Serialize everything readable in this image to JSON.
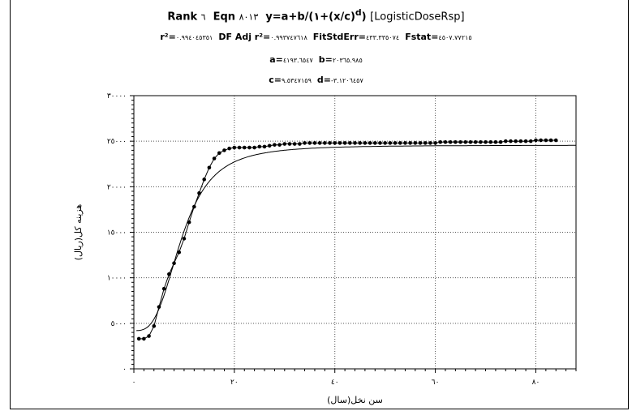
{
  "header": {
    "line1": {
      "rank_label": "Rank",
      "rank_value": "٦",
      "eqn_label": "Eqn",
      "eqn_value": "٨٠١٣",
      "equation": "y=a+b/(١+(x/c)",
      "exponent": "d",
      "close": ")",
      "model": "[LogisticDoseRsp]"
    },
    "line2": {
      "r2_label": "r²=",
      "r2_value": "٠.٩٩٤٠٤٥٣٥١",
      "adj_label": "DF Adj r²=",
      "adj_value": "٠.٩٩٣٧٤٧٦١٨",
      "fse_label": "FitStdErr=",
      "fse_value": "٤٣٣.٣٣٥٠٧٤",
      "f_label": "Fstat=",
      "f_value": "٤٥٠٧.٧٧٢١٥"
    },
    "line3": {
      "a_label": "a=",
      "a_value": "٤١٩٣.٦٥٤٧",
      "b_label": "b=",
      "b_value": "٢٠٣٦٥.٩٨٥"
    },
    "line4": {
      "c_label": "c=",
      "c_value": "٩.٥٣٤٧١٥٩",
      "d_label": "d=",
      "d_value": "-٣.١٢٠٦٤٥٧"
    }
  },
  "chart_data": {
    "type": "scatter",
    "xlabel": "سن نخل(سال)",
    "ylabel": "هزینه کل(ریال)",
    "xlim": [
      0,
      88
    ],
    "ylim": [
      0,
      30000
    ],
    "xticks": [
      0,
      20,
      40,
      60,
      80
    ],
    "xtick_labels": [
      "٠",
      "٢٠",
      "٤٠",
      "٦٠",
      "٨٠"
    ],
    "yticks": [
      0,
      5000,
      10000,
      15000,
      20000,
      25000,
      30000
    ],
    "ytick_labels": [
      "٠",
      "٥٠٠٠",
      "١٠٠٠٠",
      "١٥٠٠٠",
      "٢٠٠٠٠",
      "٢٥٠٠٠",
      "٣٠٠٠٠"
    ],
    "grid": true,
    "fit_params": {
      "a": 4193.6547,
      "b": 20365.985,
      "c": 9.5347159,
      "d": -3.1206457
    },
    "series": [
      {
        "type": "scatter",
        "x": [
          1,
          2,
          3,
          4,
          5,
          6,
          7,
          8,
          9,
          10,
          11,
          12,
          13,
          14,
          15,
          16,
          17,
          18,
          19,
          20,
          21,
          22,
          23,
          24,
          25,
          26,
          27,
          28,
          29,
          30,
          31,
          32,
          33,
          34,
          35,
          36,
          37,
          38,
          39,
          40,
          41,
          42,
          43,
          44,
          45,
          46,
          47,
          48,
          49,
          50,
          51,
          52,
          53,
          54,
          55,
          56,
          57,
          58,
          59,
          60,
          61,
          62,
          63,
          64,
          65,
          66,
          67,
          68,
          69,
          70,
          71,
          72,
          73,
          74,
          75,
          76,
          77,
          78,
          79,
          80,
          81,
          82,
          83,
          84
        ],
        "y": [
          3300,
          3300,
          3600,
          4700,
          6800,
          8800,
          10400,
          11600,
          12800,
          14300,
          16100,
          17800,
          19300,
          20800,
          22100,
          23100,
          23700,
          24000,
          24200,
          24300,
          24300,
          24300,
          24300,
          24300,
          24400,
          24400,
          24500,
          24600,
          24600,
          24700,
          24700,
          24700,
          24700,
          24800,
          24800,
          24800,
          24800,
          24800,
          24800,
          24800,
          24800,
          24800,
          24800,
          24800,
          24800,
          24800,
          24800,
          24800,
          24800,
          24800,
          24800,
          24800,
          24800,
          24800,
          24800,
          24800,
          24800,
          24800,
          24800,
          24800,
          24900,
          24900,
          24900,
          24900,
          24900,
          24900,
          24900,
          24900,
          24900,
          24900,
          24900,
          24900,
          24900,
          25000,
          25000,
          25000,
          25000,
          25000,
          25000,
          25100,
          25100,
          25100,
          25100,
          25100
        ]
      }
    ]
  }
}
